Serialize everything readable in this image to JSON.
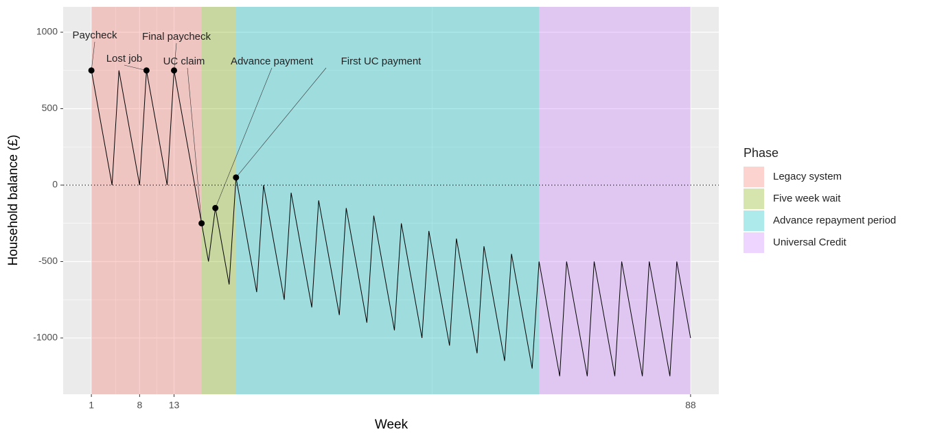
{
  "chart_data": {
    "type": "line",
    "xlabel": "Week",
    "ylabel": "Household balance (£)",
    "x": [
      1,
      4,
      5,
      8,
      9,
      12,
      13,
      17,
      18,
      19,
      21,
      22,
      25,
      26,
      29,
      30,
      33,
      34,
      37,
      38,
      41,
      42,
      45,
      46,
      49,
      50,
      53,
      54,
      57,
      58,
      61,
      62,
      65,
      66,
      69,
      70,
      73,
      74,
      77,
      78,
      81,
      82,
      85,
      86,
      88
    ],
    "series": [
      {
        "name": "Household balance",
        "color": "#000000",
        "values": [
          750,
          0,
          750,
          0,
          750,
          0,
          750,
          -250,
          -500,
          -150,
          -650,
          50,
          -700,
          0,
          -750,
          -50,
          -800,
          -100,
          -850,
          -150,
          -900,
          -200,
          -950,
          -250,
          -1000,
          -300,
          -1050,
          -350,
          -1100,
          -400,
          -1150,
          -450,
          -1200,
          -500,
          -1250,
          -500,
          -1250,
          -500,
          -1250,
          -500,
          -1250,
          -500,
          -1250,
          -500,
          -1000
        ]
      }
    ],
    "xlim": [
      -3.1,
      92.1
    ],
    "xticks": [
      1,
      8,
      13,
      88
    ],
    "ylim": [
      -1368,
      1166
    ],
    "yticks": [
      -1000,
      -500,
      0,
      500,
      1000
    ],
    "hline": 0,
    "grid": true,
    "legend_title": "Phase",
    "legend_position": "right",
    "phases": [
      {
        "name": "Legacy system",
        "color": "#F8766D",
        "start": 1,
        "end": 17
      },
      {
        "name": "Five week wait",
        "color": "#7CAE00",
        "start": 17,
        "end": 22
      },
      {
        "name": "Advance repayment period",
        "color": "#00BFC4",
        "start": 22,
        "end": 66
      },
      {
        "name": "Universal Credit",
        "color": "#C77CFF",
        "start": 66,
        "end": 88
      }
    ],
    "annotations": [
      {
        "text": "Paycheck",
        "x": 1,
        "y": 750
      },
      {
        "text": "Lost job",
        "x": 9,
        "y": 750
      },
      {
        "text": "Final paycheck",
        "x": 13,
        "y": 750
      },
      {
        "text": "UC claim",
        "x": 17,
        "y": -250
      },
      {
        "text": "Advance payment",
        "x": 19,
        "y": -150
      },
      {
        "text": "First UC payment",
        "x": 22,
        "y": 50
      }
    ]
  }
}
